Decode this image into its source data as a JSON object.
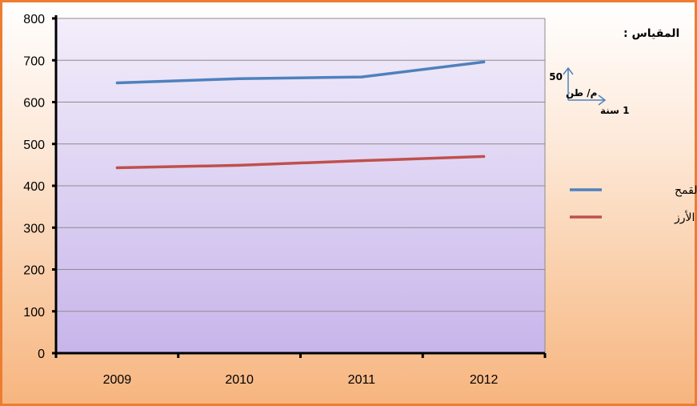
{
  "chart_data": {
    "type": "line",
    "categories": [
      "2009",
      "2010",
      "2011",
      "2012"
    ],
    "series": [
      {
        "name": "استهلاك القمح",
        "values": [
          646,
          656,
          660,
          696
        ],
        "color": "#4f81bd"
      },
      {
        "name": "استهلاك الأرز",
        "values": [
          443,
          449,
          460,
          470
        ],
        "color": "#c0504d"
      }
    ],
    "ylim": [
      0,
      800
    ],
    "yticks": [
      0,
      100,
      200,
      300,
      400,
      500,
      600,
      700,
      800
    ],
    "grid": true,
    "legend": "right",
    "plot_background": [
      "#f3eefb",
      "#c7b5ea"
    ],
    "axis_color": "#000000"
  },
  "scale_key": {
    "title": "المقياس :",
    "y_value": "50",
    "y_unit": "م/ طن",
    "x_label": "1 سنة",
    "arrow_color": "#4f81bd"
  }
}
